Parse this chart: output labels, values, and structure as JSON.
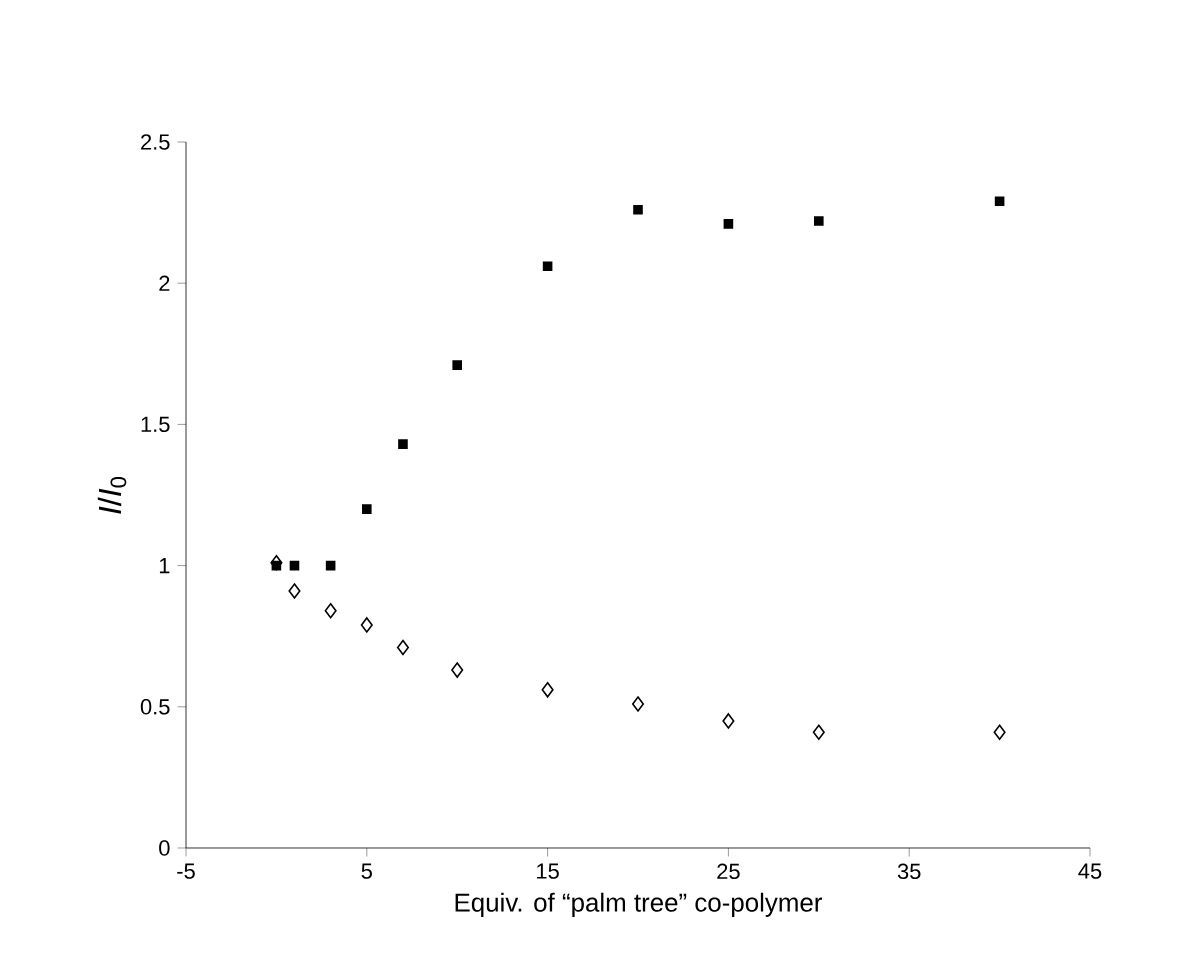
{
  "chart_data": {
    "type": "scatter",
    "xlabel": "Equiv. of “palm tree” co-polymer",
    "ylabel": "*I*/*I*$_{0}$",
    "series": [
      {
        "color": "#000000",
        "marker": "square",
        "x": [
          0,
          1,
          3,
          5,
          7,
          10,
          15,
          20,
          25,
          30,
          40
        ],
        "values": [
          1.0,
          1.0,
          1.0,
          1.2,
          1.43,
          1.71,
          2.06,
          2.26,
          2.21,
          2.22,
          2.29
        ]
      },
      {
        "color": "#000000",
        "marker": "diamond",
        "x": [
          0,
          1,
          3,
          5,
          7,
          10,
          15,
          20,
          25,
          30,
          40
        ],
        "values": [
          1.01,
          0.91,
          0.84,
          0.79,
          0.71,
          0.63,
          0.56,
          0.51,
          0.45,
          0.41,
          0.41
        ]
      }
    ],
    "xlim": [
      -5,
      45
    ],
    "xticks": [
      -5,
      5,
      15,
      25,
      35,
      45
    ],
    "ylim": [
      0,
      2.5
    ],
    "yticks": [
      0,
      0.5,
      1,
      1.5,
      2,
      2.5
    ],
    "grid": false
  }
}
